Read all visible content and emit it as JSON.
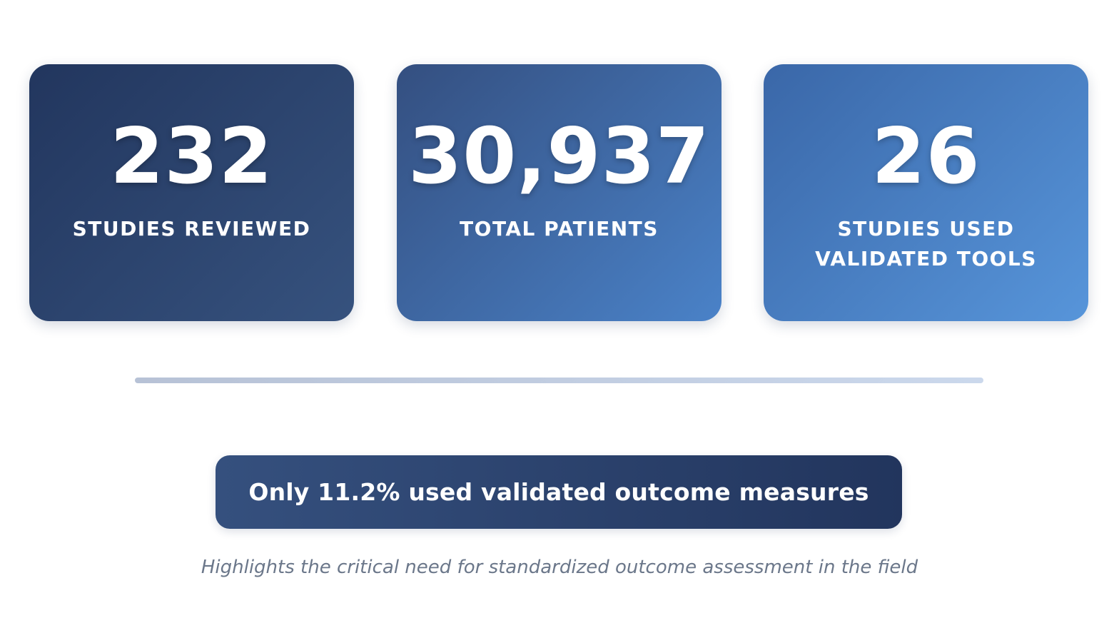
{
  "stats": [
    {
      "value": "232",
      "label": "STUDIES REVIEWED"
    },
    {
      "value": "30,937",
      "label": "TOTAL PATIENTS"
    },
    {
      "value": "26",
      "label_line1": "STUDIES USED",
      "label_line2": "VALIDATED TOOLS"
    }
  ],
  "callout": {
    "text": "Only 11.2% used validated outcome measures"
  },
  "footnote": {
    "text": "Highlights the critical need for standardized outcome assessment in the field"
  },
  "colors": {
    "card_1": "#22365e",
    "card_2": "#4a82c8",
    "card_3": "#5795da",
    "callout": "#22355d",
    "footnote_text": "#6b778a",
    "divider": "#cbd8ec"
  }
}
